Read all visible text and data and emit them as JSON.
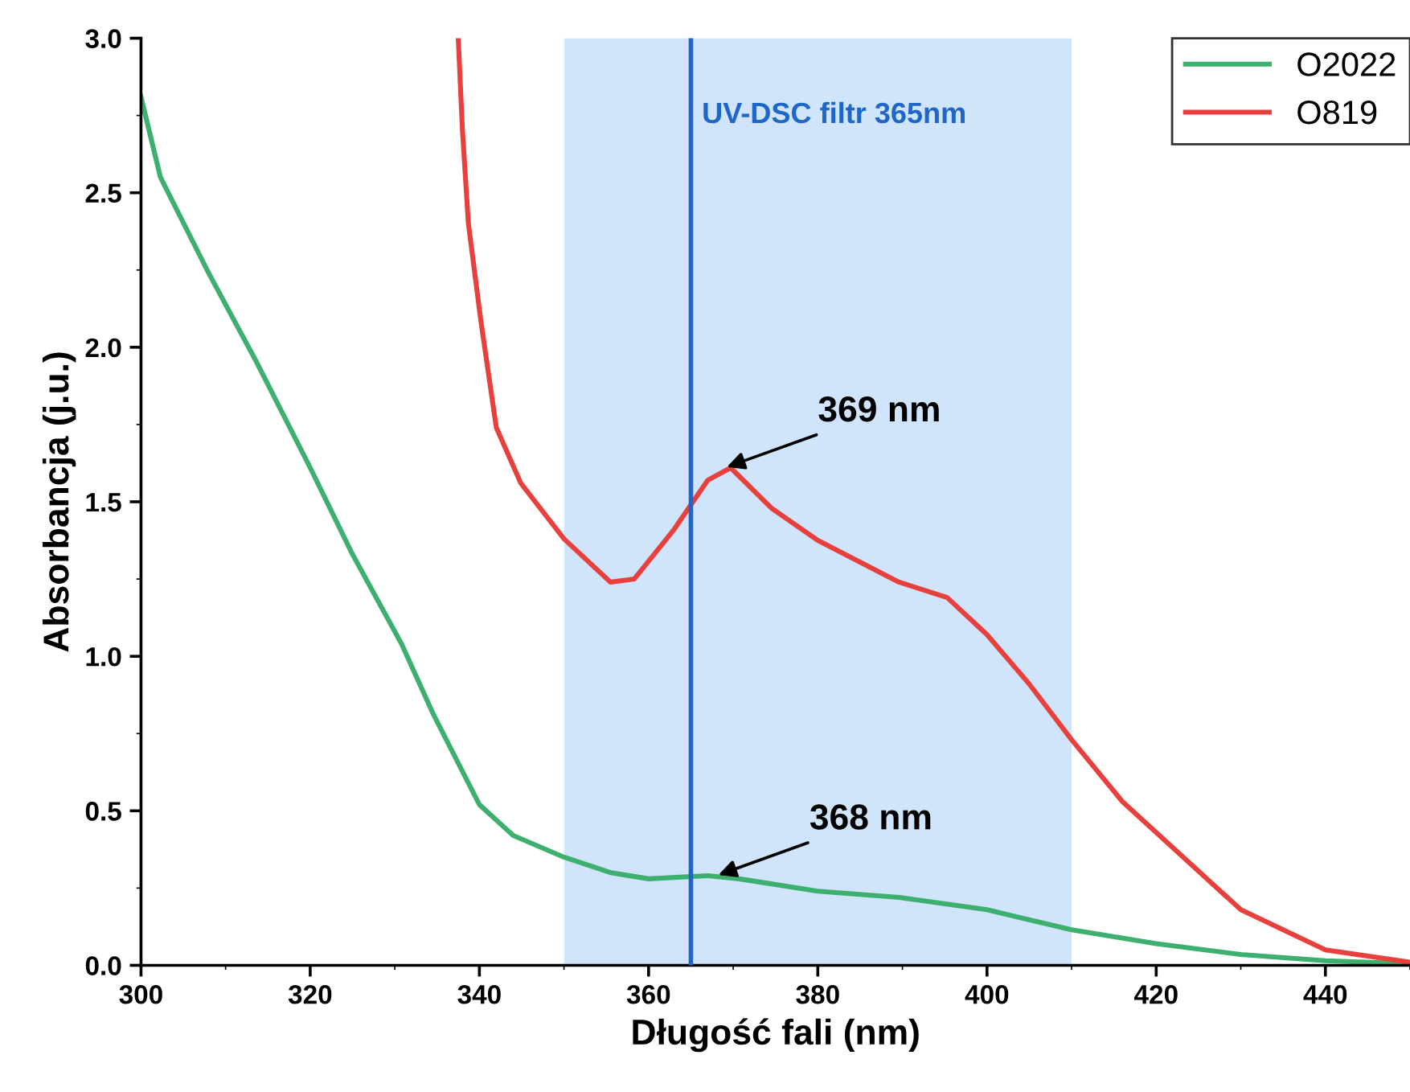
{
  "chart_data": {
    "type": "line",
    "xlabel": "Długość fali (nm)",
    "ylabel": "Absorbancja (j.u.)",
    "xlim": [
      300,
      450
    ],
    "xticks": [
      300,
      320,
      340,
      360,
      380,
      400,
      420,
      440
    ],
    "ylim": [
      0,
      3
    ],
    "yticks": [
      {
        "value": 0,
        "label": "0.0"
      },
      {
        "value": 0.5,
        "label": "0.5"
      },
      {
        "value": 1,
        "label": "1.0"
      },
      {
        "value": 1.5,
        "label": "1.5"
      },
      {
        "value": 2,
        "label": "2.0"
      },
      {
        "value": 2.5,
        "label": "2.5"
      },
      {
        "value": 3,
        "label": "3.0"
      }
    ],
    "series": [
      {
        "name": "O2022",
        "color": "#3daf6e",
        "x": [
          300,
          302.3,
          308,
          313.7,
          320,
          325,
          330.8,
          334.6,
          340,
          344,
          350,
          355.5,
          360,
          367,
          370.7,
          380,
          389.6,
          400,
          410,
          420,
          430,
          440,
          450
        ],
        "values": [
          2.81,
          2.55,
          2.24,
          1.95,
          1.61,
          1.33,
          1.04,
          0.81,
          0.52,
          0.42,
          0.35,
          0.3,
          0.28,
          0.29,
          0.28,
          0.24,
          0.22,
          0.18,
          0.115,
          0.07,
          0.035,
          0.015,
          0.005
        ]
      },
      {
        "name": "O819",
        "color": "#e8403d",
        "x": [
          337.5,
          338,
          338.7,
          340.2,
          342,
          344.9,
          350,
          355.5,
          358.3,
          363,
          367,
          369.7,
          374.5,
          380,
          389.6,
          395.3,
          400,
          405,
          410,
          416,
          420,
          430,
          440,
          450
        ],
        "values": [
          3.0,
          2.7,
          2.4,
          2.08,
          1.74,
          1.56,
          1.38,
          1.24,
          1.25,
          1.41,
          1.57,
          1.61,
          1.48,
          1.375,
          1.24,
          1.19,
          1.07,
          0.91,
          0.73,
          0.53,
          0.43,
          0.18,
          0.05,
          0.01
        ]
      }
    ],
    "bands": [
      {
        "axis": "x",
        "from": 350,
        "to": 410,
        "color": "#a9cdf7"
      }
    ],
    "ref_lines": [
      {
        "axis": "x",
        "value": 365,
        "label": "UV-DSC filtr 365nm",
        "color": "#1f66c9"
      }
    ],
    "annotations": [
      {
        "text": "369 nm",
        "x": 369,
        "y": 1.61
      },
      {
        "text": "368 nm",
        "x": 368,
        "y": 0.29
      }
    ],
    "legend": "top right",
    "grid": false
  }
}
